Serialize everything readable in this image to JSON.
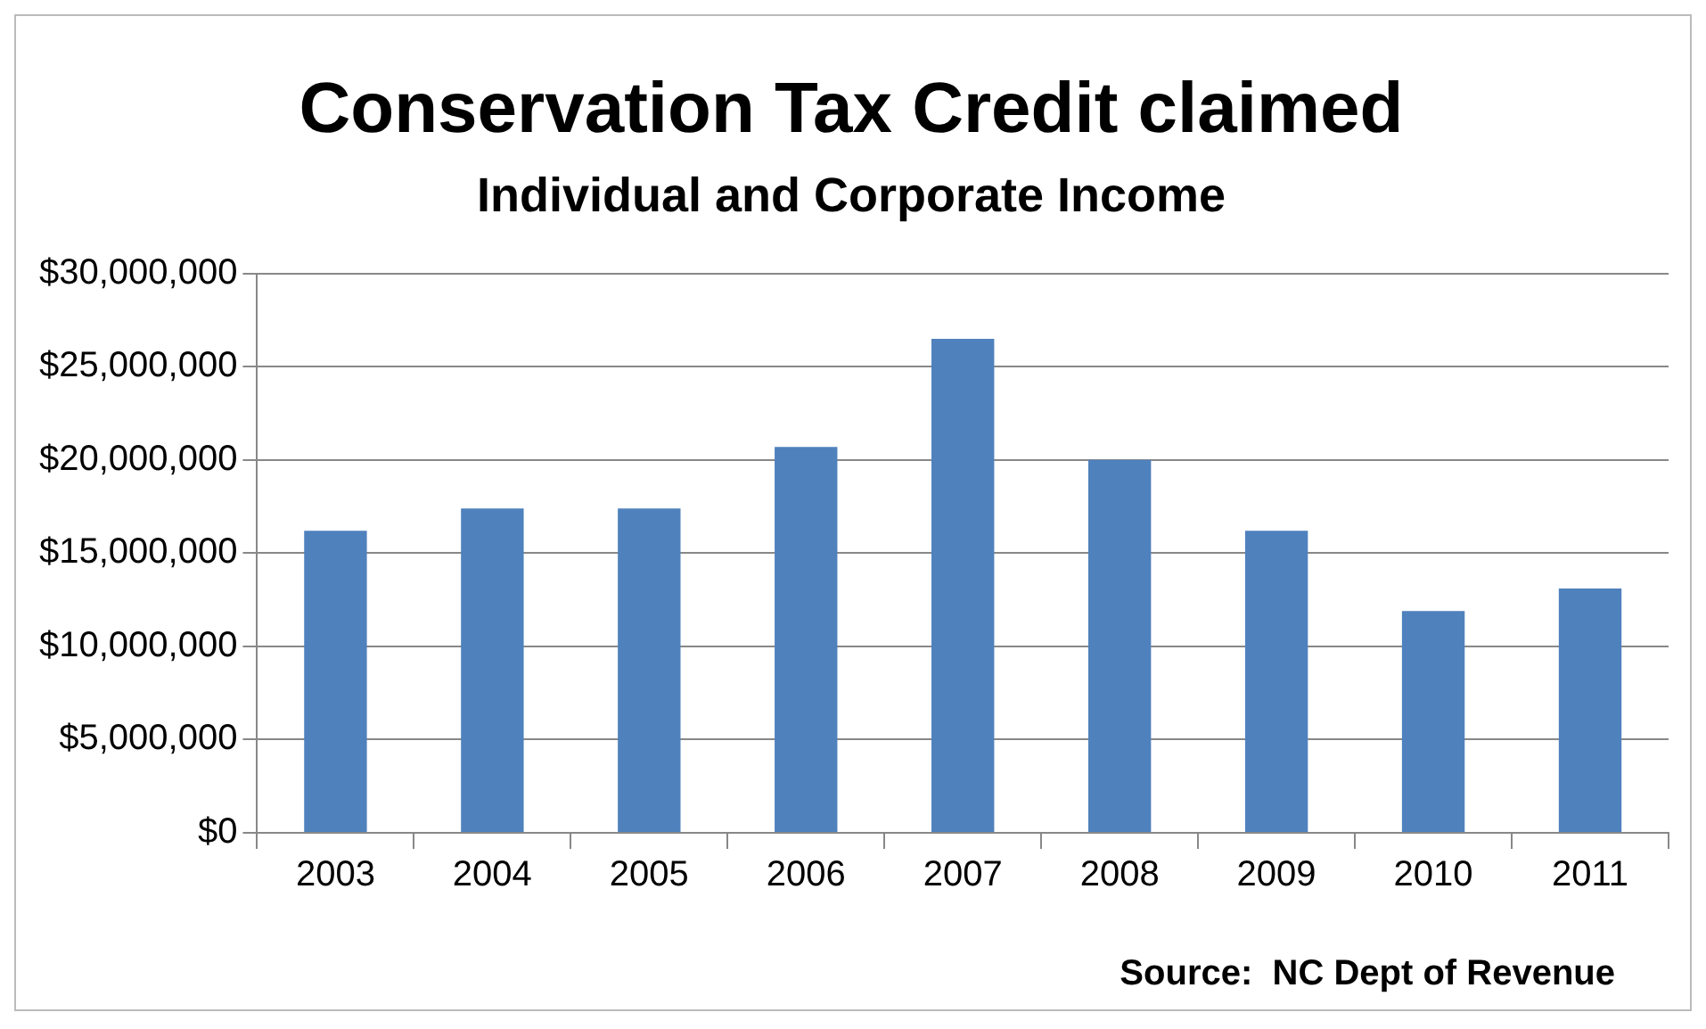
{
  "chart_data": {
    "type": "bar",
    "title": "Conservation Tax Credit claimed",
    "subtitle": "Individual and Corporate Income",
    "categories": [
      "2003",
      "2004",
      "2005",
      "2006",
      "2007",
      "2008",
      "2009",
      "2010",
      "2011"
    ],
    "values": [
      16200000.0,
      17400000.0,
      17400000.0,
      20700000.0,
      26500000.0,
      20000000.0,
      16200000.0,
      11900000.0,
      13100000.0
    ],
    "color": "#4f81bd",
    "ylim": [
      0,
      30000000
    ],
    "yticks": [
      {
        "value": 0,
        "label": "$0"
      },
      {
        "value": 5000000,
        "label": "$5,000,000"
      },
      {
        "value": 10000000,
        "label": "$10,000,000"
      },
      {
        "value": 15000000,
        "label": "$15,000,000"
      },
      {
        "value": 20000000,
        "label": "$20,000,000"
      },
      {
        "value": 25000000,
        "label": "$25,000,000"
      },
      {
        "value": 30000000,
        "label": "$30,000,000"
      }
    ],
    "grid": "y",
    "legend": false,
    "annotations": [
      "Source:  NC Dept of Revenue"
    ]
  }
}
